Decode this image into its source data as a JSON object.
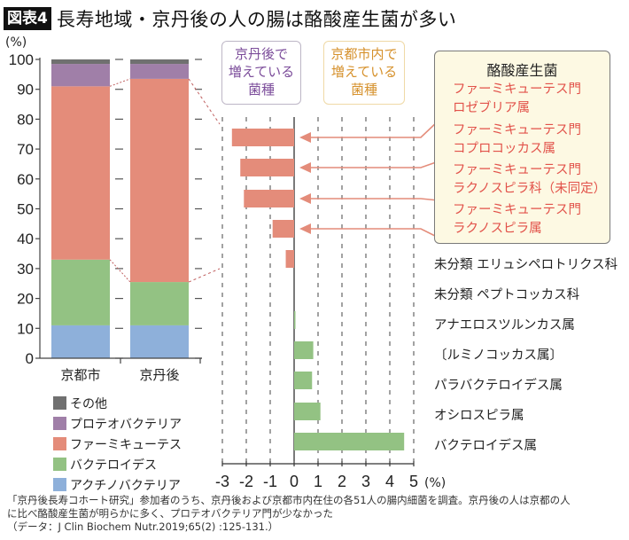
{
  "title": {
    "tag": "図表4",
    "text": "長寿地域・京丹後の人の腸は酪酸産生菌が多い"
  },
  "colors": {
    "other": "#707070",
    "proteobacteria": "#a07fa8",
    "firmicutes": "#e48c7a",
    "bacteroidetes": "#93c283",
    "actinobacteria": "#8eb0da",
    "arrow": "#e48c7a",
    "box1_text": "#7b4c9a",
    "box2_text": "#d6912c",
    "butyrate_text": "#e2524a"
  },
  "boxes": {
    "kyotango": {
      "lines": [
        "京丹後で",
        "増えている",
        "菌種"
      ]
    },
    "kyoto": {
      "lines": [
        "京都市内で",
        "増えている",
        "菌種"
      ]
    }
  },
  "butyrate_box": {
    "title": "酪酸産生菌",
    "items": [
      {
        "line1": "ファーミキューテス門",
        "line2": "ロゼブリア属"
      },
      {
        "line1": "ファーミキューテス門",
        "line2": "コプロコッカス属"
      },
      {
        "line1": "ファーミキューテス門",
        "line2": "ラクノスピラ科（未同定）"
      },
      {
        "line1": "ファーミキューテス門",
        "line2": "ラクノスピラ属"
      }
    ]
  },
  "footnote": {
    "line1": "「京丹後長寿コホート研究」参加者のうち、京丹後および京都市内在住の各51人の腸内細菌を調査。京丹後の人は京都の人",
    "line2": "に比べ酪酸産生菌が明らかに多く、プロテオバクテリア門が少なかった",
    "line3": "（データ：J Clin Biochem Nutr.2019;65(2) :125-131.）"
  },
  "chart_data": [
    {
      "type": "bar",
      "stacked": true,
      "ylabel": "(%)",
      "ylim": [
        0,
        100
      ],
      "yticks": [
        "0",
        "10",
        "20",
        "30",
        "40",
        "50",
        "60",
        "70",
        "80",
        "90",
        "100"
      ],
      "categories": [
        "京都市",
        "京丹後"
      ],
      "series": [
        {
          "name": "アクチノバクテリア",
          "key": "actinobacteria",
          "values": [
            11,
            11
          ]
        },
        {
          "name": "バクテロイデス",
          "key": "bacteroidetes",
          "values": [
            22,
            14.5
          ]
        },
        {
          "name": "ファーミキューテス",
          "key": "firmicutes",
          "values": [
            58,
            68
          ]
        },
        {
          "name": "プロテオバクテリア",
          "key": "proteobacteria",
          "values": [
            7.5,
            5
          ]
        },
        {
          "name": "その他",
          "key": "other",
          "values": [
            1.5,
            1.5
          ]
        }
      ],
      "legend": [
        "その他",
        "プロテオバクテリア",
        "ファーミキューテス",
        "バクテロイデス",
        "アクチノバクテリア"
      ],
      "legend_keys": [
        "other",
        "proteobacteria",
        "firmicutes",
        "bacteroidetes",
        "actinobacteria"
      ],
      "legend_position": "bottom"
    },
    {
      "type": "bar",
      "orientation": "horizontal",
      "xlabel": "(%)",
      "xlim": [
        -3,
        5
      ],
      "xticks": [
        "-3",
        "-2",
        "-1",
        "0",
        "1",
        "2",
        "3",
        "4",
        "5"
      ],
      "grid": true,
      "categories": [
        "ファーミキューテス門 ロゼブリア属",
        "ファーミキューテス門 コプロコッカス属",
        "ファーミキューテス門 ラクノスピラ科（未同定）",
        "ファーミキューテス門 ラクノスピラ属",
        "未分類 エリュシペロトリクス科",
        "未分類 ペプトコッカス科",
        "アナエロスツルンカス属",
        "〔ルミノコッカス属〕",
        "パラバクテロイデス属",
        "オシロスピラ属",
        "バクテロイデス属"
      ],
      "values": [
        -2.6,
        -2.25,
        -2.1,
        -0.9,
        -0.35,
        0,
        0.05,
        0.8,
        0.75,
        1.1,
        4.6
      ],
      "right_labels": [
        "未分類 エリュシペロトリクス科",
        "未分類 ペプトコッカス科",
        "アナエロスツルンカス属",
        "〔ルミノコッカス属〕",
        "パラバクテロイデス属",
        "オシロスピラ属",
        "バクテロイデス属"
      ]
    }
  ]
}
